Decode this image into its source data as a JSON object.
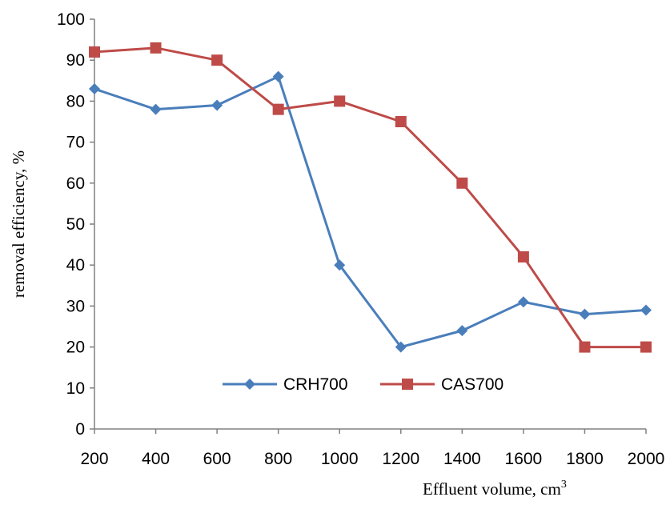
{
  "chart_data": {
    "type": "line",
    "x": [
      200,
      400,
      600,
      800,
      1000,
      1200,
      1400,
      1600,
      1800,
      2000
    ],
    "xticks": [
      "200",
      "400",
      "600",
      "800",
      "1000",
      "1200",
      "1400",
      "1600",
      "1800",
      "2000"
    ],
    "yticks": [
      "0",
      "10",
      "20",
      "30",
      "40",
      "50",
      "60",
      "70",
      "80",
      "90",
      "100"
    ],
    "ylim": [
      0,
      100
    ],
    "ylabel": "removal efficiency, %",
    "xlabel": "Effluent volume, cm",
    "xlabel_superscript": "3",
    "grid": false,
    "legend_position": "inside-bottom-center",
    "series": [
      {
        "name": "CRH700",
        "color": "#4A7EBB",
        "marker": "diamond",
        "values": [
          83,
          78,
          79,
          86,
          40,
          20,
          24,
          31,
          28,
          29
        ]
      },
      {
        "name": "CAS700",
        "color": "#BE4B48",
        "marker": "square",
        "values": [
          92,
          93,
          90,
          78,
          80,
          75,
          60,
          42,
          20,
          20
        ]
      }
    ]
  }
}
